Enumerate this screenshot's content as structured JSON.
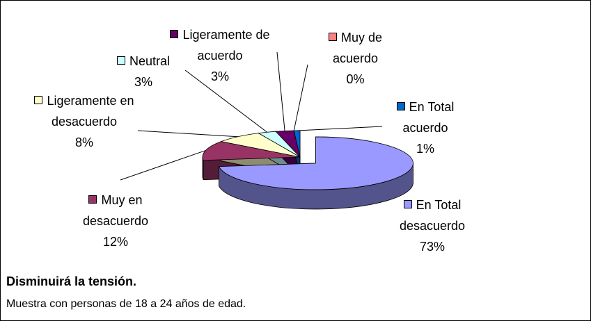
{
  "chart_data": {
    "type": "pie3d",
    "title": "Disminuirá la tensión.",
    "subtitle": "Muestra con personas de 18 a 24 años de edad.",
    "categories": [
      "En Total desacuerdo",
      "Muy en desacuerdo",
      "Ligeramente en desacuerdo",
      "Neutral",
      "Ligeramente de acuerdo",
      "Muy de acuerdo",
      "En Total acuerdo"
    ],
    "values": [
      73,
      12,
      8,
      3,
      3,
      0,
      1
    ],
    "value_labels": [
      "73%",
      "12%",
      "8%",
      "3%",
      "3%",
      "0%",
      "1%"
    ],
    "colors": [
      "#9999ff",
      "#993366",
      "#ffffcc",
      "#ccffff",
      "#660066",
      "#ff8080",
      "#0066cc"
    ]
  }
}
